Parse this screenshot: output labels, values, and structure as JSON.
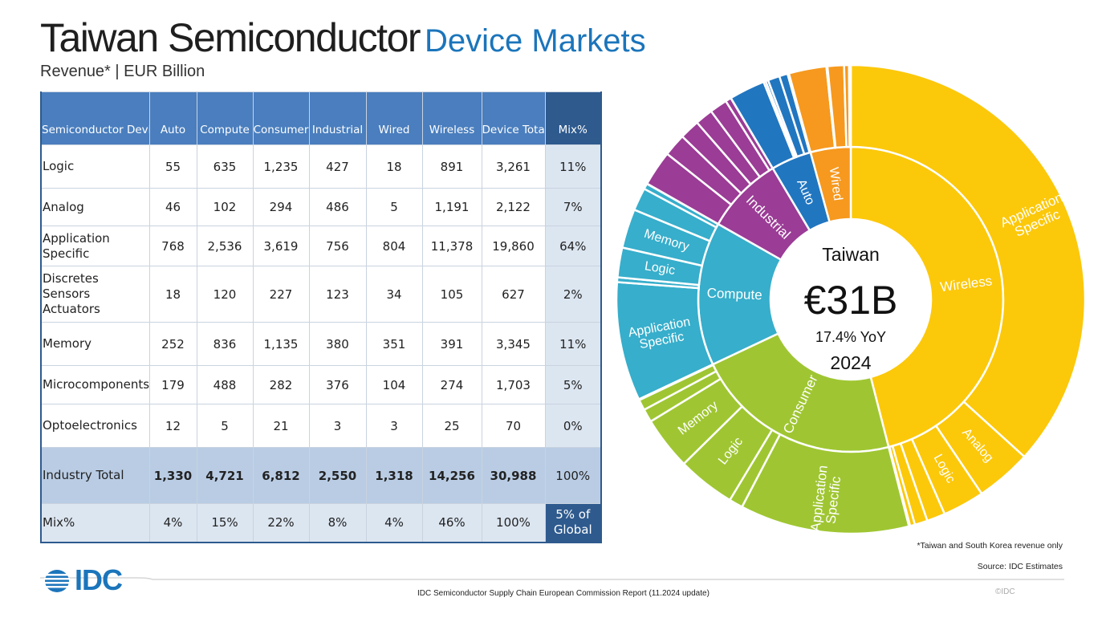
{
  "title": {
    "main": "Taiwan Semiconductor",
    "accent": "Device Markets"
  },
  "subtitle": "Revenue* | EUR Billion",
  "table": {
    "headers": [
      "Semiconductor Device",
      "Auto",
      "Compute",
      "Consumer",
      "Industrial",
      "Wired",
      "Wireless",
      "Device Total",
      "Mix%"
    ],
    "rows": [
      {
        "label": "Logic",
        "values": [
          "55",
          "635",
          "1,235",
          "427",
          "18",
          "891",
          "3,261"
        ],
        "mix": "11%"
      },
      {
        "label": "Analog",
        "values": [
          "46",
          "102",
          "294",
          "486",
          "5",
          "1,191",
          "2,122"
        ],
        "mix": "7%"
      },
      {
        "label": "Application Specific",
        "values": [
          "768",
          "2,536",
          "3,619",
          "756",
          "804",
          "11,378",
          "19,860"
        ],
        "mix": "64%"
      },
      {
        "label": "Discretes Sensors Actuators",
        "values": [
          "18",
          "120",
          "227",
          "123",
          "34",
          "105",
          "627"
        ],
        "mix": "2%"
      },
      {
        "label": "Memory",
        "values": [
          "252",
          "836",
          "1,135",
          "380",
          "351",
          "391",
          "3,345"
        ],
        "mix": "11%"
      },
      {
        "label": "Microcomponents",
        "values": [
          "179",
          "488",
          "282",
          "376",
          "104",
          "274",
          "1,703"
        ],
        "mix": "5%"
      },
      {
        "label": "Optoelectronics",
        "values": [
          "12",
          "5",
          "21",
          "3",
          "3",
          "25",
          "70"
        ],
        "mix": "0%"
      }
    ],
    "total": {
      "label": "Industry Total",
      "values": [
        "1,330",
        "4,721",
        "6,812",
        "2,550",
        "1,318",
        "14,256",
        "30,988"
      ],
      "mix": "100%"
    },
    "mixrow": {
      "label": "Mix%",
      "values": [
        "4%",
        "15%",
        "22%",
        "8%",
        "4%",
        "46%",
        "100%"
      ],
      "global": "5% of Global"
    }
  },
  "center": {
    "region": "Taiwan",
    "value": "€31B",
    "yoy": "17.4% YoY",
    "year": "2024"
  },
  "chart_data": {
    "type": "sunburst",
    "start_angle_deg": 0,
    "direction": "clockwise",
    "inner": [
      {
        "name": "Wireless",
        "value": 14256,
        "color": "#fcc80a",
        "outer_labels": {
          "Application Specific": "Application Specific",
          "Analog": "Analog",
          "Logic": "Logic"
        }
      },
      {
        "name": "Consumer",
        "value": 6812,
        "color": "#9fc632",
        "outer_labels": {
          "Application Specific": "Application Specific",
          "Logic": "Logic",
          "Memory": "Memory"
        }
      },
      {
        "name": "Compute",
        "value": 4721,
        "color": "#37aecb",
        "outer_labels": {
          "Application Specific": "Application Specific",
          "Memory": "Memory",
          "Logic": "Logic"
        }
      },
      {
        "name": "Industrial",
        "value": 2550,
        "color": "#9b3c96",
        "outer_labels": {}
      },
      {
        "name": "Auto",
        "value": 1330,
        "color": "#2176c0",
        "outer_labels": {}
      },
      {
        "name": "Wired",
        "value": 1318,
        "color": "#f6991e",
        "outer_labels": {}
      }
    ],
    "device_order": [
      "Application Specific",
      "Analog",
      "Logic",
      "Memory",
      "Microcomponents",
      "Discretes Sensors Actuators",
      "Optoelectronics"
    ],
    "outer": {
      "Wireless": [
        11378,
        1191,
        891,
        391,
        274,
        105,
        25
      ],
      "Consumer": [
        3619,
        294,
        1235,
        1135,
        282,
        227,
        21
      ],
      "Compute": [
        2536,
        102,
        635,
        836,
        488,
        120,
        5
      ],
      "Industrial": [
        756,
        486,
        427,
        380,
        376,
        123,
        3
      ],
      "Auto": [
        768,
        46,
        55,
        252,
        179,
        18,
        12
      ],
      "Wired": [
        804,
        5,
        18,
        351,
        104,
        34,
        3
      ]
    },
    "inner_label_color": "#ffffff"
  },
  "footnote": "*Taiwan and South Korea revenue only",
  "source": "Source: IDC Estimates",
  "report": "IDC Semiconductor Supply Chain European Commission Report (11.2024 update)",
  "copyright": "©IDC",
  "logo_text": "IDC"
}
